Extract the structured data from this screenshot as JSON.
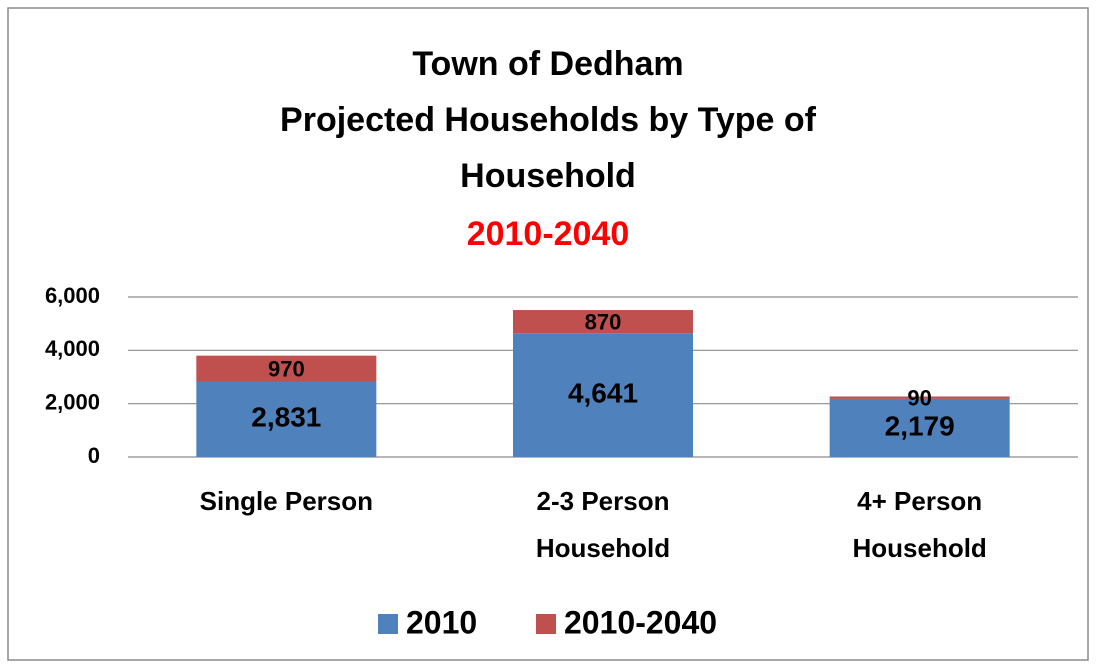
{
  "chart_data": {
    "type": "stacked_bar",
    "title": [
      "Town of Dedham",
      "Projected Households by Type of",
      "Household"
    ],
    "subtitle": "2010-2040",
    "categories": [
      [
        "Single Person"
      ],
      [
        "2-3 Person",
        "Household"
      ],
      [
        "4+ Person",
        "Household"
      ]
    ],
    "series": [
      {
        "name": "2010",
        "color": "#4f81bd",
        "values": [
          2831,
          4641,
          2179
        ],
        "value_labels": [
          "2,831",
          "4,641",
          "2,179"
        ]
      },
      {
        "name": "2010-2040",
        "color": "#c0504d",
        "values": [
          970,
          870,
          90
        ]
      }
    ],
    "ylim": [
      0,
      6000
    ],
    "yticks": [
      0,
      {
        "value": 2000,
        "label": "2,000"
      },
      {
        "value": 4000,
        "label": "4,000"
      },
      {
        "value": 6000,
        "label": "6,000"
      }
    ],
    "grid": true,
    "legend": "bottom"
  }
}
